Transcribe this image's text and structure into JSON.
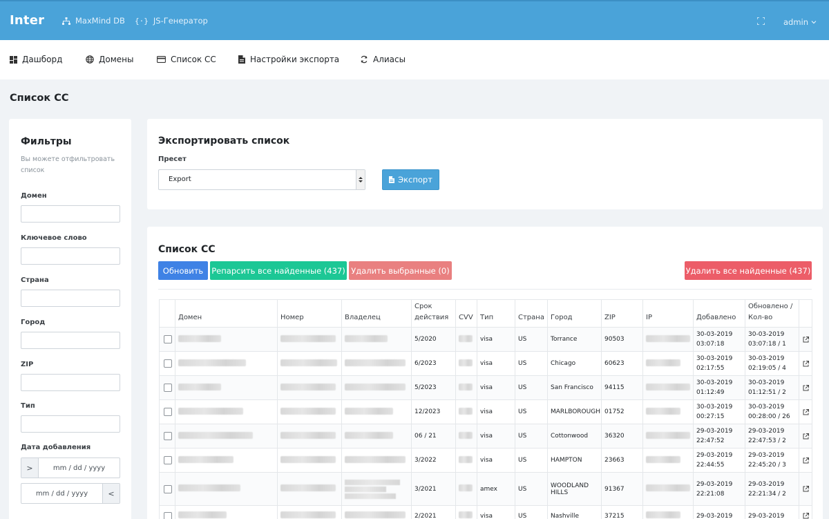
{
  "topbar": {
    "brand": "Inter",
    "links": [
      {
        "label": "MaxMind DB",
        "icon": "sitemap-icon"
      },
      {
        "label": "JS-Генератор",
        "icon": "code-braces-icon"
      }
    ],
    "user": "admin"
  },
  "nav": [
    {
      "label": "Дашборд",
      "icon": "dashboard-icon"
    },
    {
      "label": "Домены",
      "icon": "globe-icon"
    },
    {
      "label": "Список CC",
      "icon": "credit-card-icon"
    },
    {
      "label": "Настройки экспорта",
      "icon": "file-icon"
    },
    {
      "label": "Алиасы",
      "icon": "sync-icon"
    }
  ],
  "page_title": "Список CC",
  "filters": {
    "title": "Фильтры",
    "hint": "Вы можете отфильтровать список",
    "labels": {
      "domain": "Домен",
      "keyword": "Ключевое слово",
      "country": "Страна",
      "city": "Город",
      "zip": "ZIP",
      "type": "Тип",
      "date_added": "Дата добавления"
    },
    "date_from_addon": ">",
    "date_to_addon": "<",
    "date_placeholder": "mm / dd / yyyy"
  },
  "export": {
    "title": "Экспортировать список",
    "preset_label": "Пресет",
    "preset_value": "Export",
    "button": "Экспорт"
  },
  "list": {
    "title": "Список CC",
    "buttons": {
      "refresh": "Обновить",
      "reparse": "Репарсить все найденные (437)",
      "delete_selected": "Удалить выбранные (0)",
      "delete_all": "Удалить все найденные (437)"
    },
    "columns": {
      "domain": "Домен",
      "number": "Номер",
      "owner": "Владелец",
      "expiry": "Срок действия",
      "cvv": "CVV",
      "type": "Тип",
      "country": "Страна",
      "city": "Город",
      "zip": "ZIP",
      "ip": "IP",
      "added": "Добавлено",
      "updated": "Обновлено / Кол-во"
    },
    "rows": [
      {
        "expiry": "5/2020",
        "type": "visa",
        "country": "US",
        "city": "Torrance",
        "zip": "90503",
        "added_date": "30-03-2019",
        "added_time": "03:07:18",
        "upd_date": "30-03-2019",
        "upd_time": "03:07:18 / 1"
      },
      {
        "expiry": "6/2023",
        "type": "visa",
        "country": "US",
        "city": "Chicago",
        "zip": "60623",
        "added_date": "30-03-2019",
        "added_time": "02:17:55",
        "upd_date": "30-03-2019",
        "upd_time": "02:19:05 / 4"
      },
      {
        "expiry": "5/2023",
        "type": "visa",
        "country": "US",
        "city": "San Francisco",
        "zip": "94115",
        "added_date": "30-03-2019",
        "added_time": "01:12:49",
        "upd_date": "30-03-2019",
        "upd_time": "01:12:51 / 2"
      },
      {
        "expiry": "12/2023",
        "type": "visa",
        "country": "US",
        "city": "MARLBOROUGH",
        "zip": "01752",
        "added_date": "30-03-2019",
        "added_time": "00:27:15",
        "upd_date": "30-03-2019",
        "upd_time": "00:28:00 / 26"
      },
      {
        "expiry": "06 / 21",
        "type": "visa",
        "country": "US",
        "city": "Cottonwood",
        "zip": "36320",
        "added_date": "29-03-2019",
        "added_time": "22:47:52",
        "upd_date": "29-03-2019",
        "upd_time": "22:47:53 / 2"
      },
      {
        "expiry": "3/2022",
        "type": "visa",
        "country": "US",
        "city": "HAMPTON",
        "zip": "23663",
        "added_date": "29-03-2019",
        "added_time": "22:44:55",
        "upd_date": "29-03-2019",
        "upd_time": "22:45:20 / 3"
      },
      {
        "expiry": "3/2021",
        "type": "amex",
        "country": "US",
        "city": "WOODLAND HILLS",
        "zip": "91367",
        "added_date": "29-03-2019",
        "added_time": "22:21:08",
        "upd_date": "29-03-2019",
        "upd_time": "22:21:34 / 2"
      },
      {
        "expiry": "2/2021",
        "type": "visa",
        "country": "US",
        "city": "Nashville",
        "zip": "37215",
        "added_date": "29-03-2019",
        "added_time": "",
        "upd_date": "29-03-2019",
        "upd_time": ""
      }
    ]
  },
  "colors": {
    "topbar": "#4aa3d9",
    "refresh": "#3f82e5",
    "reparse": "#1cc795",
    "delete_selected": "#e98080",
    "delete_all": "#ec5d68"
  }
}
